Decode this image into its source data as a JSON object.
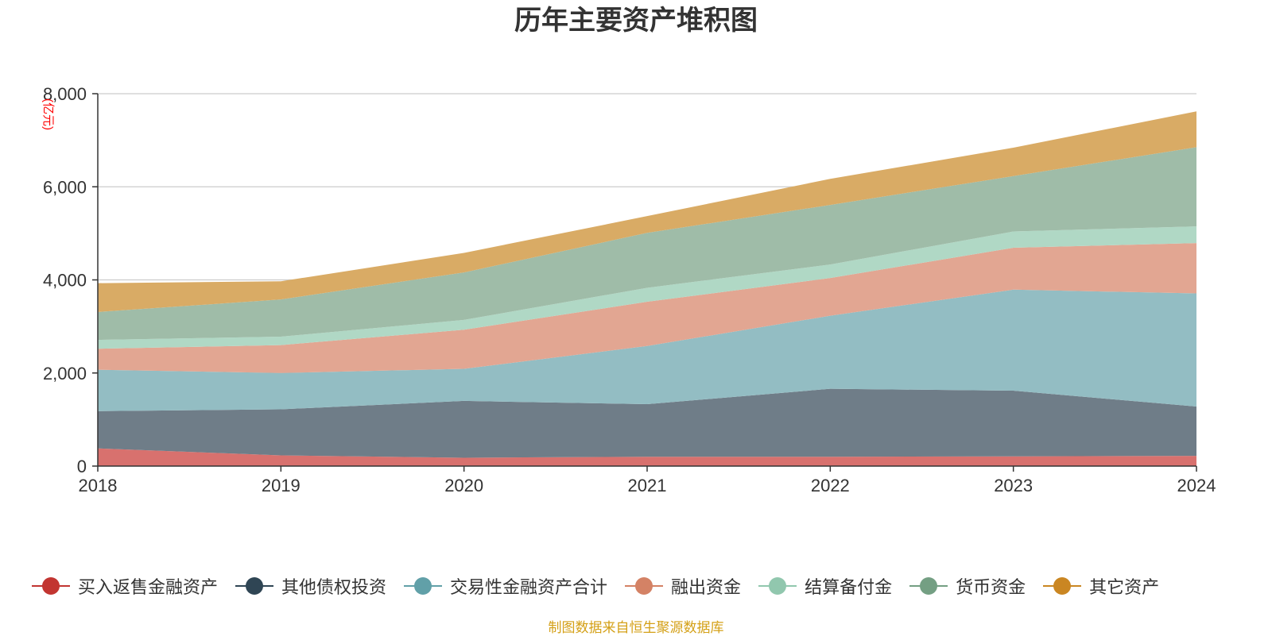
{
  "title": "历年主要资产堆积图",
  "unit_label": "(亿元)",
  "source_note": "制图数据来自恒生聚源数据库",
  "chart_data": {
    "type": "area",
    "stacked": true,
    "title": "历年主要资产堆积图",
    "xlabel": "",
    "ylabel": "(亿元)",
    "x": [
      "2018",
      "2019",
      "2020",
      "2021",
      "2022",
      "2023",
      "2024"
    ],
    "ylim": [
      0,
      8000
    ],
    "yticks": [
      0,
      2000,
      4000,
      6000,
      8000
    ],
    "ytick_labels": [
      "0",
      "2,000",
      "4,000",
      "6,000",
      "8,000"
    ],
    "grid": true,
    "legend_position": "bottom",
    "series": [
      {
        "name": "买入返售金融资产",
        "color": "#c23531",
        "fill": "#d8716e",
        "values": [
          380,
          230,
          180,
          200,
          200,
          210,
          220
        ]
      },
      {
        "name": "其他债权投资",
        "color": "#2f4554",
        "fill": "#6f7d88",
        "values": [
          800,
          990,
          1220,
          1130,
          1460,
          1410,
          1060
        ]
      },
      {
        "name": "交易性金融资产合计",
        "color": "#61a0a8",
        "fill": "#93bdc3",
        "values": [
          890,
          780,
          690,
          1250,
          1570,
          2170,
          2430
        ]
      },
      {
        "name": "融出资金",
        "color": "#d48265",
        "fill": "#e2a692",
        "values": [
          450,
          600,
          840,
          950,
          810,
          900,
          1080
        ]
      },
      {
        "name": "结算备付金",
        "color": "#91c7ae",
        "fill": "#b0d8c5",
        "values": [
          190,
          180,
          210,
          300,
          290,
          350,
          360
        ]
      },
      {
        "name": "货币资金",
        "color": "#749f83",
        "fill": "#9fbca8",
        "values": [
          600,
          800,
          1020,
          1180,
          1280,
          1190,
          1700
        ]
      },
      {
        "name": "其它资产",
        "color": "#ca8622",
        "fill": "#d9ab65",
        "values": [
          620,
          390,
          420,
          360,
          560,
          610,
          770
        ]
      }
    ]
  }
}
